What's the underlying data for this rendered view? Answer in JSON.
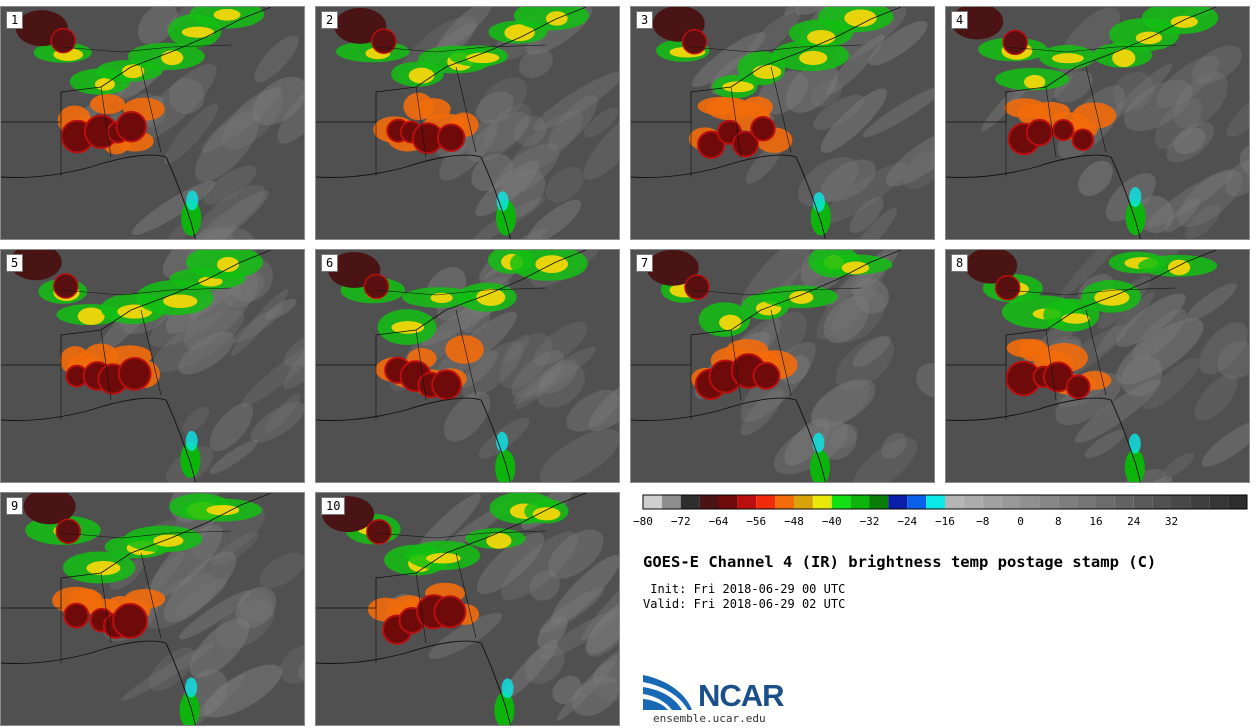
{
  "panels": [
    {
      "label": "1"
    },
    {
      "label": "2"
    },
    {
      "label": "3"
    },
    {
      "label": "4"
    },
    {
      "label": "5"
    },
    {
      "label": "6"
    },
    {
      "label": "7"
    },
    {
      "label": "8"
    },
    {
      "label": "9"
    },
    {
      "label": "10"
    }
  ],
  "colorbar": {
    "ticks": [
      "−80",
      "−72",
      "−64",
      "−56",
      "−48",
      "−40",
      "−32",
      "−24",
      "−16",
      "−8",
      "0",
      "8",
      "16",
      "24",
      "32"
    ],
    "colors": [
      "#cfcfcf",
      "#8e8e8e",
      "#2e2e2e",
      "#4a1414",
      "#6e0a0a",
      "#b90f0f",
      "#f02a0a",
      "#f26b0a",
      "#d8a30a",
      "#e8e80a",
      "#12e012",
      "#0cb40c",
      "#0a7d0a",
      "#0a1ea8",
      "#0a60e8",
      "#0ae8e8",
      "#b5b5b5",
      "#acacac",
      "#a2a2a2",
      "#999999",
      "#909090",
      "#878787",
      "#7e7e7e",
      "#757575",
      "#6c6c6c",
      "#636363",
      "#5a5a5a",
      "#515151",
      "#484848",
      "#3f3f3f",
      "#363636",
      "#2d2d2d"
    ]
  },
  "title": "GOES-E Channel 4 (IR) brightness temp postage stamp (C)",
  "init": " Init: Fri 2018-06-29 00 UTC",
  "valid": "Valid: Fri 2018-06-29 02 UTC",
  "logo": {
    "text": "NCAR",
    "url": "ensemble.ucar.edu"
  }
}
